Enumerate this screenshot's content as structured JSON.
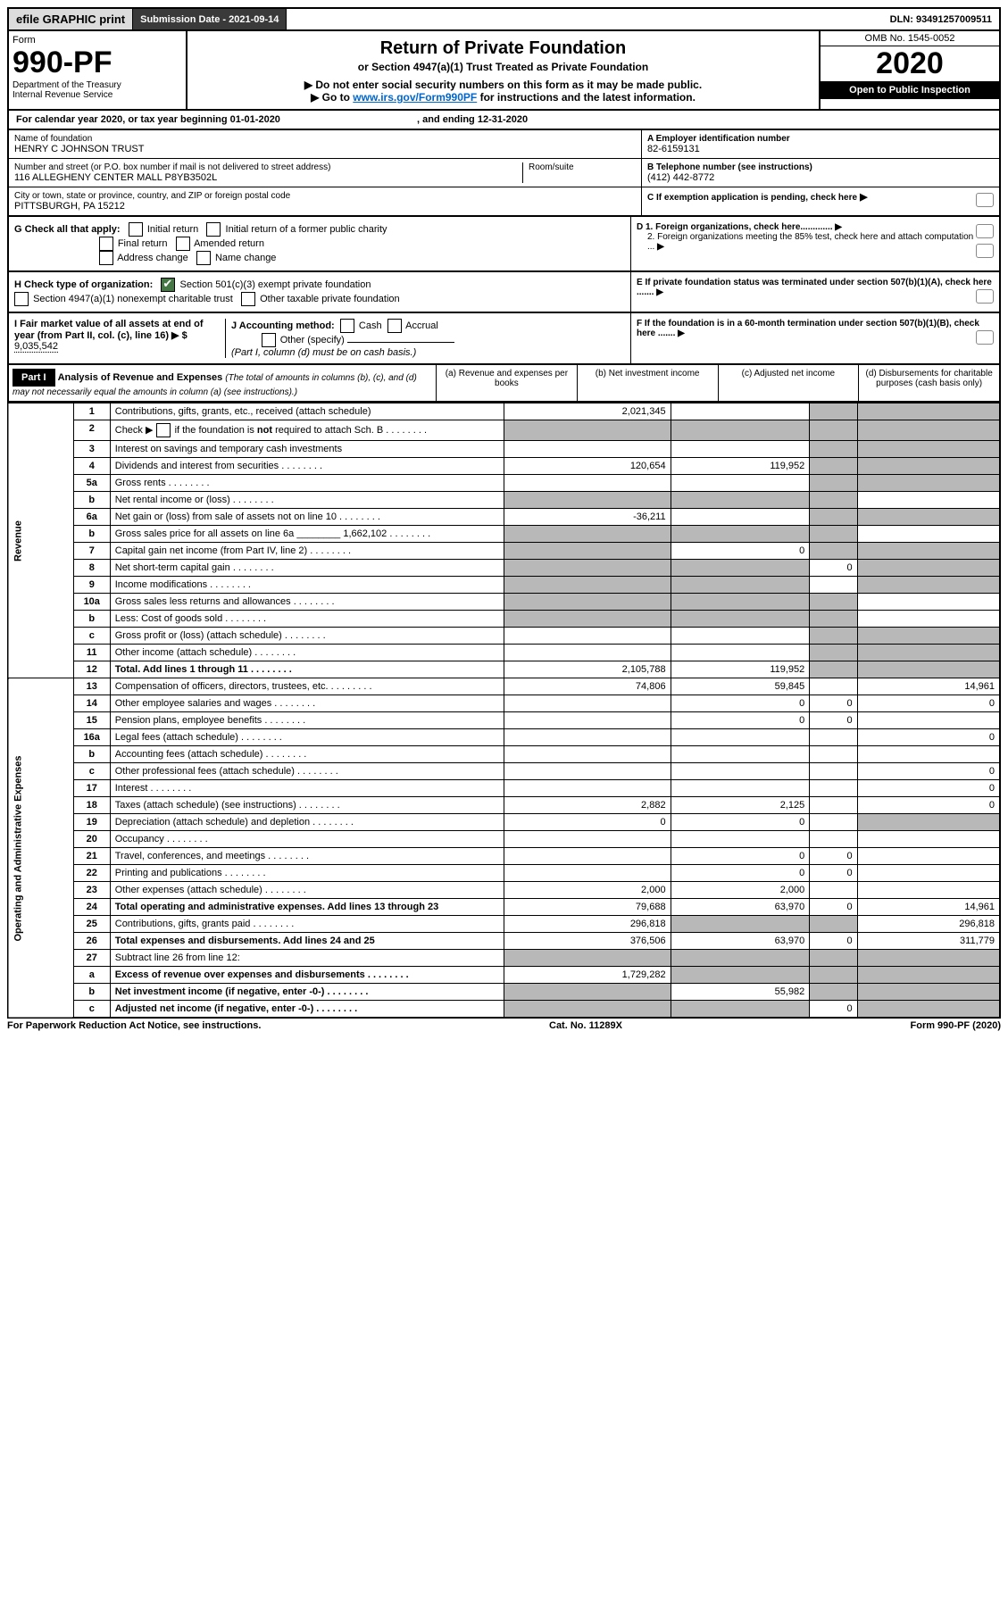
{
  "topbar": {
    "efile": "efile",
    "graphic": "GRAPHIC",
    "print": "print",
    "submission_label": "Submission Date - 2021-09-14",
    "dln": "DLN: 93491257009511"
  },
  "header": {
    "form_word": "Form",
    "form_no": "990-PF",
    "dept": "Department of the Treasury",
    "irs": "Internal Revenue Service",
    "title": "Return of Private Foundation",
    "subtitle": "or Section 4947(a)(1) Trust Treated as Private Foundation",
    "warn1": "▶ Do not enter social security numbers on this form as it may be made public.",
    "warn2_pre": "▶ Go to ",
    "warn2_link": "www.irs.gov/Form990PF",
    "warn2_post": " for instructions and the latest information.",
    "omb": "OMB No. 1545-0052",
    "year": "2020",
    "open": "Open to Public Inspection"
  },
  "cal": {
    "text_pre": "For calendar year 2020, or tax year beginning ",
    "begin": "01-01-2020",
    "mid": " , and ending ",
    "end": "12-31-2020"
  },
  "ident": {
    "name_label": "Name of foundation",
    "name": "HENRY C JOHNSON TRUST",
    "addr_label": "Number and street (or P.O. box number if mail is not delivered to street address)",
    "addr": "116 ALLEGHENY CENTER MALL P8YB3502L",
    "room_label": "Room/suite",
    "city_label": "City or town, state or province, country, and ZIP or foreign postal code",
    "city": "PITTSBURGH, PA  15212",
    "a_label": "A Employer identification number",
    "a_val": "82-6159131",
    "b_label": "B Telephone number (see instructions)",
    "b_val": "(412) 442-8772",
    "c_label": "C If exemption application is pending, check here"
  },
  "g": {
    "label": "G Check all that apply:",
    "o1": "Initial return",
    "o2": "Initial return of a former public charity",
    "o3": "Final return",
    "o4": "Amended return",
    "o5": "Address change",
    "o6": "Name change"
  },
  "h": {
    "label": "H Check type of organization:",
    "o1": "Section 501(c)(3) exempt private foundation",
    "o2": "Section 4947(a)(1) nonexempt charitable trust",
    "o3": "Other taxable private foundation"
  },
  "i": {
    "label": "I Fair market value of all assets at end of year (from Part II, col. (c), line 16) ▶ $ ",
    "val": "9,035,542"
  },
  "j": {
    "label": "J Accounting method:",
    "o1": "Cash",
    "o2": "Accrual",
    "o3": "Other (specify)",
    "note": "(Part I, column (d) must be on cash basis.)"
  },
  "d": {
    "d1": "D 1. Foreign organizations, check here.............",
    "d2": "2. Foreign organizations meeting the 85% test, check here and attach computation ...",
    "e": "E  If private foundation status was terminated under section 507(b)(1)(A), check here .......",
    "f": "F  If the foundation is in a 60-month termination under section 507(b)(1)(B), check here ......."
  },
  "part1": {
    "label": "Part I",
    "title": "Analysis of Revenue and Expenses",
    "note": "(The total of amounts in columns (b), (c), and (d) may not necessarily equal the amounts in column (a) (see instructions).)",
    "col_a": "(a)   Revenue and expenses per books",
    "col_b": "(b)  Net investment income",
    "col_c": "(c)  Adjusted net income",
    "col_d": "(d)  Disbursements for charitable purposes (cash basis only)"
  },
  "side": {
    "rev": "Revenue",
    "exp": "Operating and Administrative Expenses"
  },
  "rows": {
    "r1": {
      "n": "1",
      "d": "Contributions, gifts, grants, etc., received (attach schedule)",
      "a": "2,021,345"
    },
    "r2": {
      "n": "2",
      "d": "Check ▶        if the foundation is not required to attach Sch. B"
    },
    "r3": {
      "n": "3",
      "d": "Interest on savings and temporary cash investments"
    },
    "r4": {
      "n": "4",
      "d": "Dividends and interest from securities",
      "a": "120,654",
      "b": "119,952"
    },
    "r5a": {
      "n": "5a",
      "d": "Gross rents"
    },
    "r5b": {
      "n": "b",
      "d": "Net rental income or (loss)"
    },
    "r6a": {
      "n": "6a",
      "d": "Net gain or (loss) from sale of assets not on line 10",
      "a": "-36,211"
    },
    "r6b": {
      "n": "b",
      "d": "Gross sales price for all assets on line 6a ",
      "inline": "1,662,102"
    },
    "r7": {
      "n": "7",
      "d": "Capital gain net income (from Part IV, line 2)",
      "b": "0"
    },
    "r8": {
      "n": "8",
      "d": "Net short-term capital gain",
      "c": "0"
    },
    "r9": {
      "n": "9",
      "d": "Income modifications"
    },
    "r10a": {
      "n": "10a",
      "d": "Gross sales less returns and allowances"
    },
    "r10b": {
      "n": "b",
      "d": "Less: Cost of goods sold"
    },
    "r10c": {
      "n": "c",
      "d": "Gross profit or (loss) (attach schedule)"
    },
    "r11": {
      "n": "11",
      "d": "Other income (attach schedule)"
    },
    "r12": {
      "n": "12",
      "d": "Total. Add lines 1 through 11",
      "a": "2,105,788",
      "b": "119,952"
    },
    "r13": {
      "n": "13",
      "d": "Compensation of officers, directors, trustees, etc.",
      "a": "74,806",
      "b": "59,845",
      "dd": "14,961"
    },
    "r14": {
      "n": "14",
      "d": "Other employee salaries and wages",
      "b": "0",
      "c": "0",
      "dd": "0"
    },
    "r15": {
      "n": "15",
      "d": "Pension plans, employee benefits",
      "b": "0",
      "c": "0"
    },
    "r16a": {
      "n": "16a",
      "d": "Legal fees (attach schedule)",
      "dd": "0"
    },
    "r16b": {
      "n": "b",
      "d": "Accounting fees (attach schedule)"
    },
    "r16c": {
      "n": "c",
      "d": "Other professional fees (attach schedule)",
      "dd": "0"
    },
    "r17": {
      "n": "17",
      "d": "Interest",
      "dd": "0"
    },
    "r18": {
      "n": "18",
      "d": "Taxes (attach schedule) (see instructions)",
      "a": "2,882",
      "b": "2,125",
      "dd": "0"
    },
    "r19": {
      "n": "19",
      "d": "Depreciation (attach schedule) and depletion",
      "a": "0",
      "b": "0"
    },
    "r20": {
      "n": "20",
      "d": "Occupancy"
    },
    "r21": {
      "n": "21",
      "d": "Travel, conferences, and meetings",
      "b": "0",
      "c": "0"
    },
    "r22": {
      "n": "22",
      "d": "Printing and publications",
      "b": "0",
      "c": "0"
    },
    "r23": {
      "n": "23",
      "d": "Other expenses (attach schedule)",
      "a": "2,000",
      "b": "2,000"
    },
    "r24": {
      "n": "24",
      "d": "Total operating and administrative expenses. Add lines 13 through 23",
      "a": "79,688",
      "b": "63,970",
      "c": "0",
      "dd": "14,961"
    },
    "r25": {
      "n": "25",
      "d": "Contributions, gifts, grants paid",
      "a": "296,818",
      "dd": "296,818"
    },
    "r26": {
      "n": "26",
      "d": "Total expenses and disbursements. Add lines 24 and 25",
      "a": "376,506",
      "b": "63,970",
      "c": "0",
      "dd": "311,779"
    },
    "r27": {
      "n": "27",
      "d": "Subtract line 26 from line 12:"
    },
    "r27a": {
      "n": "a",
      "d": "Excess of revenue over expenses and disbursements",
      "a": "1,729,282"
    },
    "r27b": {
      "n": "b",
      "d": "Net investment income (if negative, enter -0-)",
      "b": "55,982"
    },
    "r27c": {
      "n": "c",
      "d": "Adjusted net income (if negative, enter -0-)",
      "c": "0"
    }
  },
  "footer": {
    "left": "For Paperwork Reduction Act Notice, see instructions.",
    "mid": "Cat. No. 11289X",
    "right": "Form 990-PF (2020)"
  }
}
